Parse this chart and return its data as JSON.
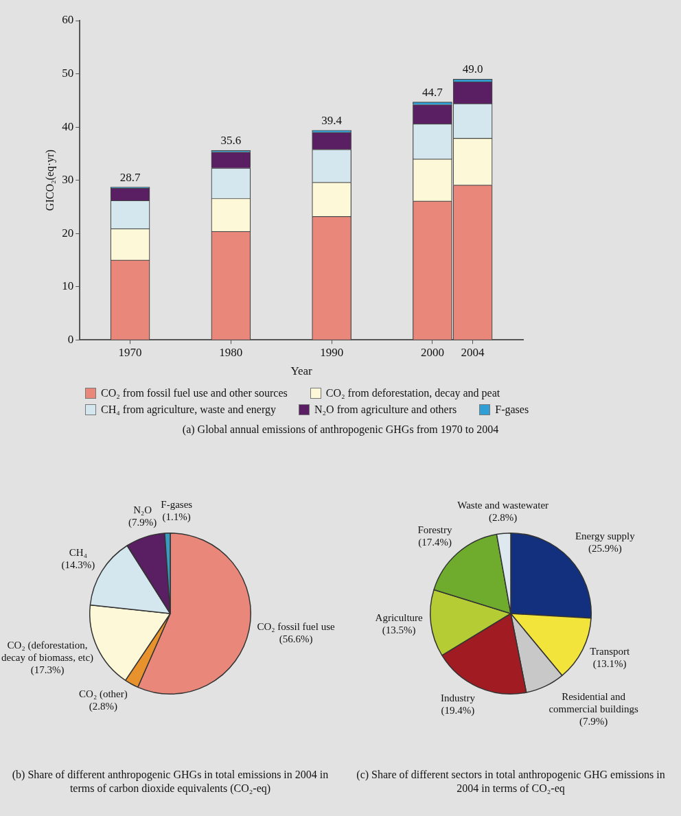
{
  "chart_data": [
    {
      "type": "bar",
      "title": "(a) Global annual emissions of anthropogenic GHGs from 1970 to 2004",
      "xlabel": "Year",
      "ylabel": "GICO₂(eq·yr)",
      "x": [
        1970,
        1980,
        1990,
        2000,
        2004
      ],
      "xlim": [
        1965,
        2009
      ],
      "xticks": [
        1970,
        1980,
        1990,
        2000,
        2004
      ],
      "ylim": [
        0,
        60
      ],
      "yticks": [
        0,
        10,
        20,
        30,
        40,
        50,
        60
      ],
      "stacked": true,
      "legend": "bottom",
      "totals": [
        "28.7",
        "35.6",
        "39.4",
        "44.7",
        "49.0"
      ],
      "series": [
        {
          "name": "CO₂ from fossil fuel use and other sources",
          "color": "#e8877a",
          "values": [
            15.0,
            20.4,
            23.2,
            26.1,
            29.1
          ]
        },
        {
          "name": "CO₂ from deforestation, decay and peat",
          "color": "#fdf8d8",
          "values": [
            5.9,
            6.2,
            6.4,
            7.9,
            8.8
          ]
        },
        {
          "name": "CH₄ from agriculture, waste and energy",
          "color": "#d5e7ee",
          "values": [
            5.3,
            5.7,
            6.2,
            6.6,
            6.5
          ]
        },
        {
          "name": "N₂O from agriculture and others",
          "color": "#5a1f62",
          "values": [
            2.3,
            3.0,
            3.2,
            3.6,
            4.1
          ]
        },
        {
          "name": "F-gases",
          "color": "#2f9fd6",
          "values": [
            0.2,
            0.3,
            0.4,
            0.5,
            0.5
          ]
        }
      ]
    },
    {
      "type": "pie",
      "title": "(b) Share of different anthropogenic GHGs in total emissions in 2004 in terms of carbon dioxide equivalents (CO₂-eq)",
      "categories": [
        "CO₂ fossil fuel use",
        "CO₂ (other)",
        "CO₂ (deforestation, decay of biomass, etc)",
        "CH₄",
        "N₂O",
        "F-gases"
      ],
      "values": [
        56.6,
        2.8,
        17.3,
        14.3,
        7.9,
        1.1
      ],
      "value_labels": [
        "(56.6%)",
        "(2.8%)",
        "(17.3%)",
        "(14.3%)",
        "(7.9%)",
        "(1.1%)"
      ],
      "colors": [
        "#e8877a",
        "#e8922e",
        "#fdf8d8",
        "#d5e7ee",
        "#5a1f62",
        "#3a9bc1"
      ]
    },
    {
      "type": "pie",
      "title": "(c) Share of different sectors in total anthropogenic GHG emissions in 2004 in terms of CO₂-eq",
      "categories": [
        "Energy supply",
        "Transport",
        "Residential and commercial buildings",
        "Industry",
        "Agriculture",
        "Forestry",
        "Waste and wastewater"
      ],
      "values": [
        25.9,
        13.1,
        7.9,
        19.4,
        13.5,
        17.4,
        2.8
      ],
      "value_labels": [
        "(25.9%)",
        "(13.1%)",
        "(7.9%)",
        "(19.4%)",
        "(13.5%)",
        "(17.4%)",
        "(2.8%)"
      ],
      "colors": [
        "#13307e",
        "#f2e43a",
        "#c8c8c8",
        "#a01c22",
        "#b5cc34",
        "#6fac2e",
        "#dde9ef"
      ]
    }
  ]
}
